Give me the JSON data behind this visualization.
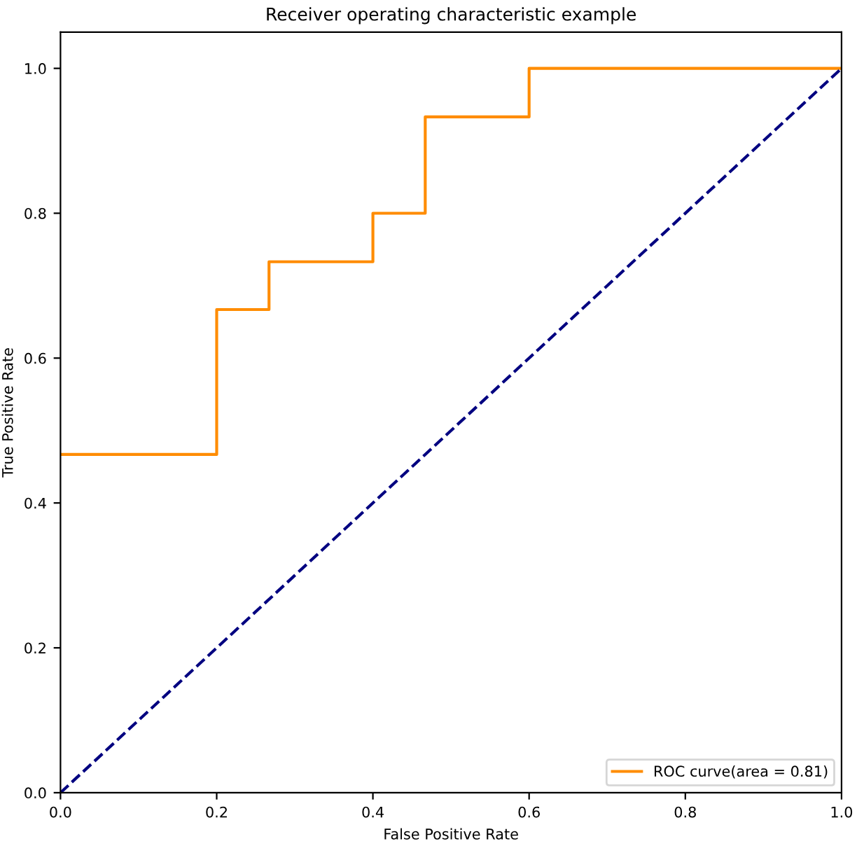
{
  "chart_data": {
    "type": "line",
    "title": "Receiver operating characteristic example",
    "xlabel": "False Positive Rate",
    "ylabel": "True Positive Rate",
    "series": [
      {
        "name": "ROC curve(area = 0.81)",
        "type": "step",
        "color": "#ff8c00",
        "line_style": "solid",
        "x": [
          0,
          0.2,
          0.267,
          0.4,
          0.467,
          0.6,
          1
        ],
        "values": [
          0.467,
          0.667,
          0.733,
          0.8,
          0.933,
          1,
          1
        ]
      },
      {
        "color": "#000080",
        "line_style": "dashed",
        "x": [
          0,
          1
        ],
        "values": [
          0,
          1
        ]
      }
    ],
    "xlim": [
      0,
      1
    ],
    "ylim": [
      0,
      1.05
    ],
    "xticks": [
      {
        "value": 0,
        "label": "0.0"
      },
      {
        "value": 0.2,
        "label": "0.2"
      },
      {
        "value": 0.4,
        "label": "0.4"
      },
      {
        "value": 0.6,
        "label": "0.6"
      },
      {
        "value": 0.8,
        "label": "0.8"
      },
      {
        "value": 1,
        "label": "1.0"
      }
    ],
    "yticks": [
      {
        "value": 0,
        "label": "0.0"
      },
      {
        "value": 0.2,
        "label": "0.2"
      },
      {
        "value": 0.4,
        "label": "0.4"
      },
      {
        "value": 0.6,
        "label": "0.6"
      },
      {
        "value": 0.8,
        "label": "0.8"
      },
      {
        "value": 1,
        "label": "1.0"
      }
    ],
    "legend": "bottom right",
    "grid": false,
    "marker": "none"
  }
}
